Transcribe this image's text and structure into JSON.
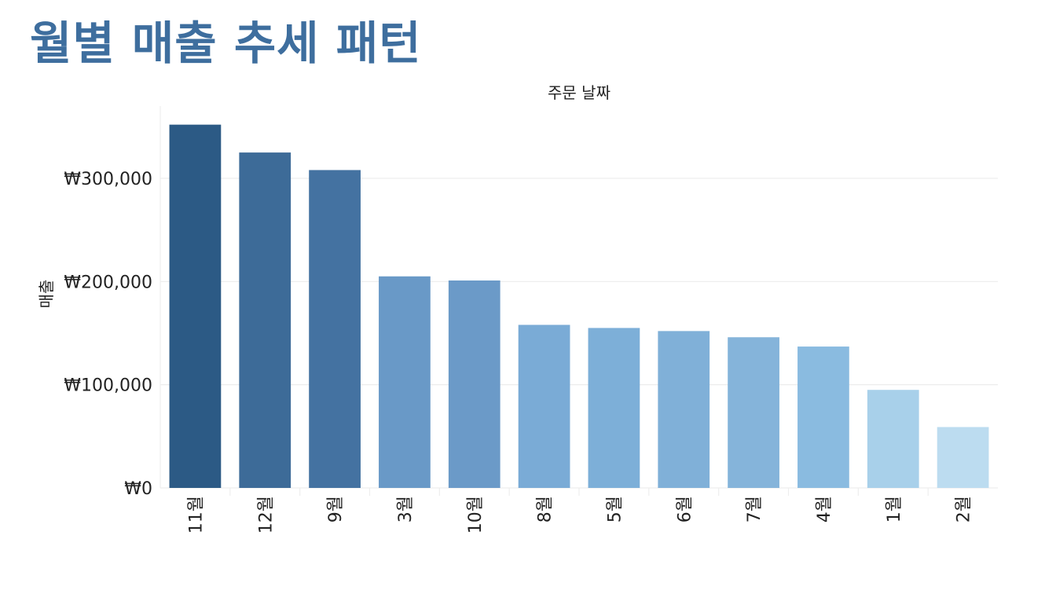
{
  "page": {
    "title": "월별 매출 추세 패턴"
  },
  "colors": {
    "title": "#3e6e9e",
    "bar_gradient": [
      "#2c5a85",
      "#3d6b98",
      "#4472a1",
      "#6999c7",
      "#6b9ac8",
      "#7aabd6",
      "#7dafd8",
      "#80b0d8",
      "#85b4da",
      "#8abbe0",
      "#a8d0ea",
      "#bcdcf0"
    ],
    "gridline": "#ececec",
    "text": "#222222"
  },
  "chart_data": {
    "type": "bar",
    "title": "",
    "top_axis_label": "주문 날짜",
    "xlabel": "",
    "ylabel": "매출",
    "categories": [
      "11월",
      "12월",
      "9월",
      "3월",
      "10월",
      "8월",
      "5월",
      "6월",
      "7월",
      "4월",
      "1월",
      "2월"
    ],
    "values": [
      352000,
      325000,
      308000,
      205000,
      201000,
      158000,
      155000,
      152000,
      146000,
      137000,
      95000,
      59000
    ],
    "ylim": [
      0,
      370000
    ],
    "yticks": [
      0,
      100000,
      200000,
      300000
    ],
    "ytick_labels": [
      "₩0",
      "₩100,000",
      "₩200,000",
      "₩300,000"
    ],
    "grid": true,
    "legend": "none",
    "x_tick_rotation": "vertical"
  }
}
